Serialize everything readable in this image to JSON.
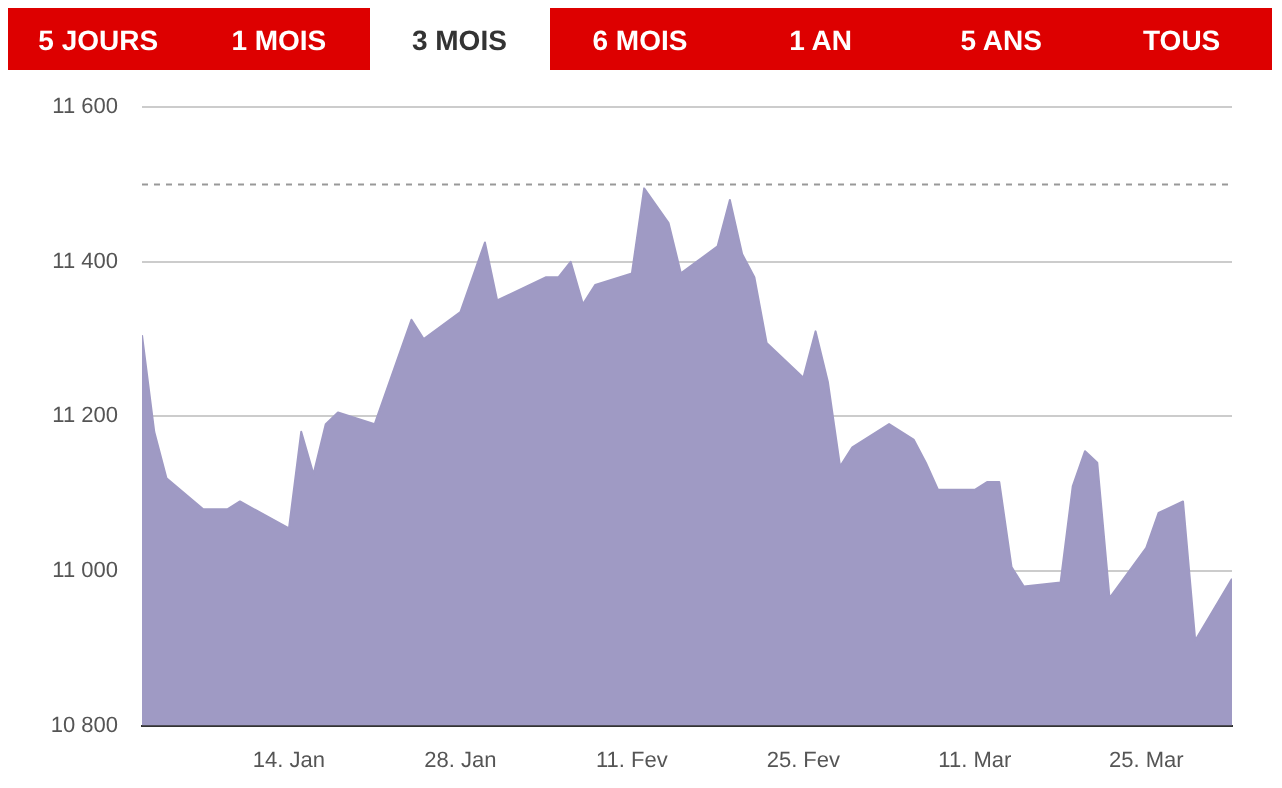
{
  "chart_data": {
    "type": "area",
    "annotations": [
      "5 JOURS",
      "1 MOIS",
      "3 MOIS",
      "6 MOIS",
      "1 AN",
      "5 ANS",
      "TOUS"
    ],
    "x": [
      "--01-02",
      "--01-03",
      "--01-04",
      "--01-07",
      "--01-09",
      "--01-10",
      "--01-14",
      "--01-15",
      "--01-16",
      "--01-17",
      "--01-18",
      "--01-21",
      "--01-22",
      "--01-24",
      "--01-25",
      "--01-28",
      "--01-30",
      "--01-31",
      "--02-04",
      "--02-05",
      "--02-06",
      "--02-07",
      "--02-08",
      "--02-11",
      "--02-12",
      "--02-14",
      "--02-15",
      "--02-18",
      "--02-19",
      "--02-20",
      "--02-21",
      "--02-22",
      "--02-25",
      "--02-26",
      "--02-27",
      "--02-28",
      "--03-01",
      "--03-04",
      "--03-06",
      "--03-07",
      "--03-08",
      "--03-11",
      "--03-12",
      "--03-13",
      "--03-14",
      "--03-15",
      "--03-18",
      "--03-19",
      "--03-20",
      "--03-21",
      "--03-22",
      "--03-25",
      "--03-26",
      "--03-28",
      "--03-29",
      "--04-01"
    ],
    "series": [
      {
        "color": "#9f9ac4",
        "values": [
          11305,
          11180,
          11120,
          11080,
          11080,
          11090,
          11055,
          11180,
          11125,
          11190,
          11205,
          11190,
          11235,
          11325,
          11300,
          11335,
          11425,
          11350,
          11380,
          11380,
          11400,
          11345,
          11370,
          11385,
          11495,
          11450,
          11385,
          11420,
          11480,
          11410,
          11380,
          11295,
          11250,
          11310,
          11245,
          11135,
          11160,
          11190,
          11170,
          11140,
          11105,
          11105,
          11115,
          11115,
          11005,
          10980,
          10985,
          11110,
          11155,
          11140,
          10965,
          11030,
          11075,
          11090,
          10910,
          10990
        ]
      }
    ],
    "xlim": [
      "--01-02",
      "--04-01"
    ],
    "xticks": [
      {
        "value": "--01-14",
        "label": "14. Jan"
      },
      {
        "value": "--01-28",
        "label": "28. Jan"
      },
      {
        "value": "--02-11",
        "label": "11. Fev"
      },
      {
        "value": "--02-25",
        "label": "25. Fev"
      },
      {
        "value": "--03-11",
        "label": "11. Mar"
      },
      {
        "value": "--03-25",
        "label": "25. Mar"
      }
    ],
    "ylim": [
      10800,
      11600
    ],
    "yticks": [
      {
        "value": 10800,
        "label": "10 800"
      },
      {
        "value": 11000,
        "label": "11 000"
      },
      {
        "value": 11200,
        "label": "11 200"
      },
      {
        "value": 11400,
        "label": "11 400"
      },
      {
        "value": 11600,
        "label": "11 600"
      }
    ],
    "ref_lines": [
      {
        "axis": "y",
        "value": 11500,
        "color": "#999999",
        "line_style": "dashed"
      }
    ],
    "grid": "y",
    "legend": false
  }
}
